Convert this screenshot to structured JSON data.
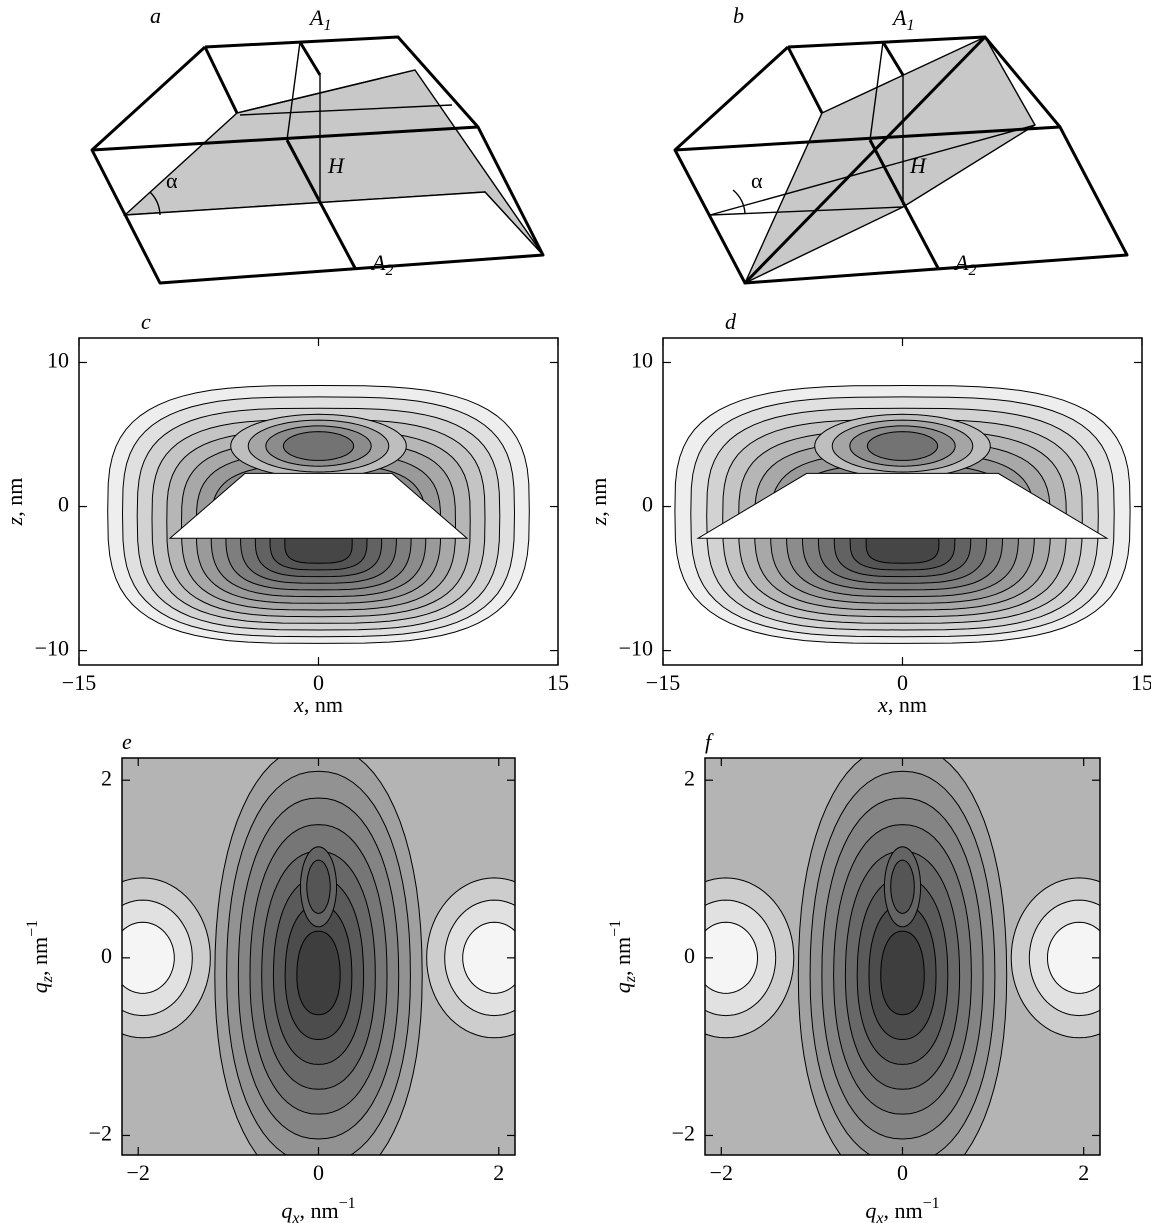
{
  "diagrams": [
    {
      "label": "a",
      "top": {
        "base": "A",
        "sub": "1"
      },
      "bottom": {
        "base": "A",
        "sub": "2"
      },
      "height": "H",
      "angle": "α"
    },
    {
      "label": "b",
      "top": {
        "base": "A",
        "sub": "1"
      },
      "bottom": {
        "base": "A",
        "sub": "2"
      },
      "height": "H",
      "angle": "α"
    }
  ],
  "chart_data": [
    {
      "type": "contour",
      "panel": "c",
      "xlabel": {
        "symbol": "x",
        "unit": ", nm"
      },
      "ylabel": {
        "symbol": "z",
        "unit": ", nm"
      },
      "xlim": [
        -15,
        15
      ],
      "ylim": [
        -11,
        11.7
      ],
      "xticks": [
        {
          "value": -15,
          "label": "−15"
        },
        0,
        15
      ],
      "yticks": [
        {
          "value": -10,
          "label": "−10"
        },
        0,
        10
      ]
    },
    {
      "type": "contour",
      "panel": "d",
      "xlabel": {
        "symbol": "x",
        "unit": ", nm"
      },
      "ylabel": {
        "symbol": "z",
        "unit": ", nm"
      },
      "xlim": [
        -15,
        15
      ],
      "ylim": [
        -11,
        11.7
      ],
      "xticks": [
        {
          "value": -15,
          "label": "−15"
        },
        0,
        15
      ],
      "yticks": [
        {
          "value": -10,
          "label": "−10"
        },
        0,
        10
      ]
    },
    {
      "type": "contour",
      "panel": "e",
      "xlabel": {
        "symbol": "q",
        "sub": "x",
        "unit": ", nm",
        "sup": "−1"
      },
      "ylabel": {
        "symbol": "q",
        "sub": "z",
        "unit": ", nm",
        "sup": "−1"
      },
      "xlim": [
        -2.18,
        2.18
      ],
      "ylim": [
        -2.22,
        2.25
      ],
      "xticks": [
        {
          "value": -2,
          "label": "−2"
        },
        0,
        2
      ],
      "yticks": [
        {
          "value": -2,
          "label": "−2"
        },
        0,
        2
      ]
    },
    {
      "type": "contour",
      "panel": "f",
      "xlabel": {
        "symbol": "q",
        "sub": "x",
        "unit": ", nm",
        "sup": "−1"
      },
      "ylabel": {
        "symbol": "q",
        "sub": "z",
        "unit": ", nm",
        "sup": "−1"
      },
      "xlim": [
        -2.18,
        2.18
      ],
      "ylim": [
        -2.22,
        2.25
      ],
      "xticks": [
        {
          "value": -2,
          "label": "−2"
        },
        0,
        2
      ],
      "yticks": [
        {
          "value": -2,
          "label": "−2"
        },
        0,
        2
      ]
    }
  ]
}
